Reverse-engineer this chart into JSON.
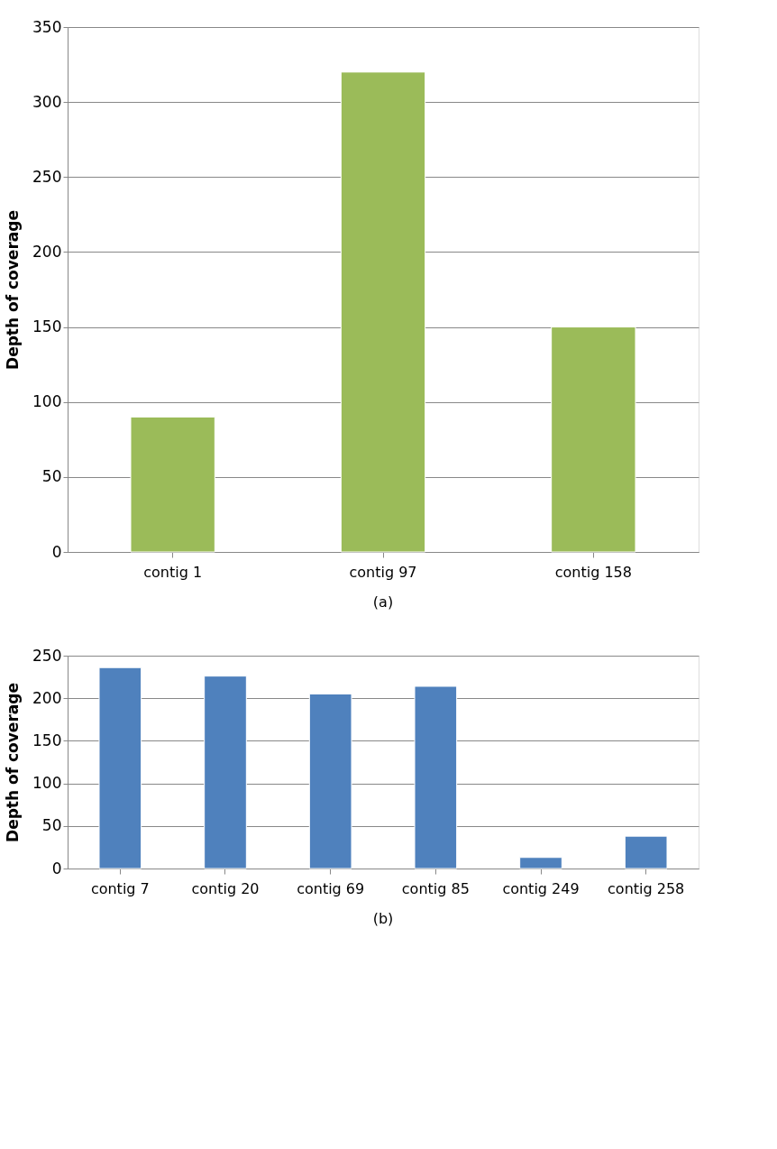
{
  "chart_data": [
    {
      "type": "bar",
      "ylabel": "Depth of coverage",
      "categories": [
        "contig 1",
        "contig 97",
        "contig 158"
      ],
      "values": [
        90,
        320,
        150
      ],
      "color": "#9bbb59",
      "ylim": [
        0,
        350
      ],
      "yticks": [
        0,
        50,
        100,
        150,
        200,
        250,
        300,
        350
      ],
      "grid": "y",
      "annotations": [
        "(a)"
      ]
    },
    {
      "type": "bar",
      "ylabel": "Depth of coverage",
      "categories": [
        "contig 7",
        "contig 20",
        "contig 69",
        "contig 85",
        "contig 249",
        "contig 258"
      ],
      "values": [
        236,
        226,
        205,
        214,
        13,
        38
      ],
      "color": "#4f81bd",
      "ylim": [
        0,
        250
      ],
      "yticks": [
        0,
        50,
        100,
        150,
        200,
        250
      ],
      "grid": "y",
      "annotations": [
        "(b)"
      ]
    }
  ]
}
